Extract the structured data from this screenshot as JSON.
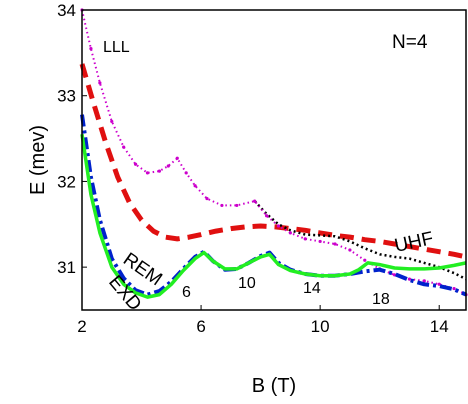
{
  "chart_data": {
    "type": "line",
    "title": "",
    "xlabel": "B (T)",
    "ylabel": "E  (mev)",
    "xlim": [
      2,
      14.9
    ],
    "ylim": [
      30.5,
      34
    ],
    "xticks": [
      2,
      6,
      10,
      14
    ],
    "yticks": [
      31,
      32,
      33,
      34
    ],
    "grid": false,
    "legend": "none",
    "series": [
      {
        "name": "LLL",
        "color": "#cc00cc",
        "style": "dotted-markers",
        "x": [
          2.0,
          2.3,
          2.6,
          3.0,
          3.4,
          3.8,
          4.2,
          4.6,
          4.9,
          5.2,
          5.5,
          5.8,
          6.2,
          6.7,
          7.2,
          7.8,
          8.2,
          8.6,
          9.0,
          9.5,
          10.0,
          10.5,
          11.0,
          11.5,
          12.0,
          12.5,
          13.0,
          13.5,
          14.0,
          14.5,
          14.9
        ],
        "y": [
          34.0,
          33.55,
          33.15,
          32.7,
          32.4,
          32.2,
          32.1,
          32.12,
          32.18,
          32.27,
          32.1,
          31.95,
          31.8,
          31.72,
          31.72,
          31.77,
          31.6,
          31.48,
          31.4,
          31.33,
          31.3,
          31.27,
          31.2,
          31.08,
          30.98,
          30.91,
          30.86,
          30.84,
          30.8,
          30.75,
          30.68
        ]
      },
      {
        "name": "UHF",
        "color": "#e01010",
        "style": "dashed",
        "x": [
          2.0,
          2.4,
          2.8,
          3.2,
          3.6,
          4.0,
          4.4,
          4.8,
          5.2,
          5.6,
          6.0,
          6.5,
          7.0,
          7.5,
          8.0,
          8.5,
          9.0,
          9.5,
          10.0,
          10.5,
          11.0,
          11.5,
          12.0,
          12.5,
          13.0,
          13.5,
          14.0,
          14.5,
          14.9
        ],
        "y": [
          33.37,
          32.9,
          32.45,
          32.05,
          31.75,
          31.55,
          31.42,
          31.35,
          31.33,
          31.35,
          31.38,
          31.42,
          31.45,
          31.47,
          31.48,
          31.47,
          31.45,
          31.43,
          31.4,
          31.37,
          31.35,
          31.32,
          31.3,
          31.27,
          31.24,
          31.21,
          31.18,
          31.15,
          31.12
        ]
      },
      {
        "name": "",
        "color": "#000000",
        "style": "dotted",
        "x": [
          7.8,
          8.2,
          8.6,
          9.0,
          9.5,
          10.0,
          10.5,
          11.0,
          11.5,
          12.0,
          12.5,
          13.0,
          13.5,
          14.0,
          14.5,
          14.9
        ],
        "y": [
          31.77,
          31.62,
          31.5,
          31.43,
          31.38,
          31.37,
          31.36,
          31.3,
          31.22,
          31.15,
          31.12,
          31.1,
          31.05,
          31.0,
          30.93,
          30.86
        ]
      },
      {
        "name": "REM",
        "color": "#0022cc",
        "style": "dash-dot",
        "x": [
          2.0,
          2.3,
          2.6,
          3.0,
          3.4,
          3.8,
          4.2,
          4.6,
          5.0,
          5.4,
          5.8,
          6.1,
          6.4,
          6.8,
          7.2,
          7.6,
          8.0,
          8.3,
          8.6,
          9.0,
          9.5,
          10.0,
          10.5,
          11.0,
          11.5,
          12.0,
          12.5,
          13.0,
          13.5,
          14.0,
          14.5,
          14.9
        ],
        "y": [
          32.78,
          32.05,
          31.55,
          31.1,
          30.87,
          30.73,
          30.68,
          30.72,
          30.83,
          30.98,
          31.12,
          31.18,
          31.07,
          30.97,
          30.98,
          31.05,
          31.13,
          31.17,
          31.05,
          30.97,
          30.92,
          30.9,
          30.9,
          30.92,
          30.95,
          30.97,
          30.92,
          30.85,
          30.8,
          30.78,
          30.74,
          30.68
        ]
      },
      {
        "name": "EXD",
        "color": "#22ee22",
        "style": "solid",
        "x": [
          2.0,
          2.3,
          2.6,
          3.0,
          3.4,
          3.8,
          4.2,
          4.6,
          5.0,
          5.4,
          5.8,
          6.1,
          6.4,
          6.8,
          7.2,
          7.6,
          8.0,
          8.3,
          8.6,
          9.0,
          9.5,
          10.0,
          10.5,
          11.0,
          11.3,
          11.6,
          12.0,
          12.5,
          13.0,
          13.5,
          14.0,
          14.5,
          14.9
        ],
        "y": [
          32.55,
          31.85,
          31.4,
          31.0,
          30.8,
          30.7,
          30.65,
          30.68,
          30.8,
          30.96,
          31.1,
          31.17,
          31.07,
          30.98,
          30.98,
          31.05,
          31.12,
          31.15,
          31.03,
          30.96,
          30.92,
          30.9,
          30.9,
          30.92,
          30.97,
          31.05,
          31.03,
          30.99,
          30.98,
          30.98,
          30.99,
          31.02,
          31.05
        ]
      }
    ],
    "annotations": {
      "lll": "LLL",
      "n": "N=4",
      "uhf": "UHF",
      "rem": "REM",
      "exd": "EXD",
      "m6": "6",
      "m10": "10",
      "m14": "14",
      "m18": "18"
    }
  }
}
